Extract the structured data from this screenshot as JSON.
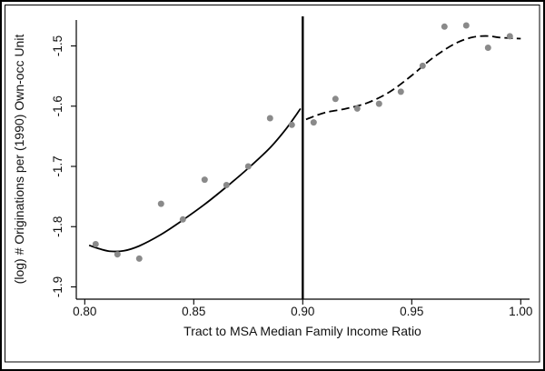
{
  "chart_data": {
    "type": "scatter",
    "title": "",
    "xlabel": "Tract to MSA Median Family Income Ratio",
    "ylabel": "(log) # Originations per (1990) Own-occ Unit",
    "xlim": [
      0.8,
      1.0
    ],
    "ylim": [
      -1.92,
      -1.457
    ],
    "grid": false,
    "legend": "none",
    "x_ticks": [
      0.8,
      0.85,
      0.9,
      0.95,
      1.0
    ],
    "x_tick_labels": [
      "0.80",
      "0.85",
      "0.90",
      "0.95",
      "1.00"
    ],
    "y_ticks": [
      -1.5,
      -1.6,
      -1.7,
      -1.8,
      -1.9
    ],
    "y_tick_labels": [
      "-1.5",
      "-1.6",
      "-1.7",
      "-1.8",
      "-1.9"
    ],
    "cutoff_x": 0.9,
    "point_color": "#8a8a8a",
    "line_color": "#000000",
    "points": [
      {
        "x": 0.805,
        "y": -1.829
      },
      {
        "x": 0.815,
        "y": -1.846
      },
      {
        "x": 0.825,
        "y": -1.853
      },
      {
        "x": 0.835,
        "y": -1.762
      },
      {
        "x": 0.845,
        "y": -1.788
      },
      {
        "x": 0.855,
        "y": -1.722
      },
      {
        "x": 0.865,
        "y": -1.731
      },
      {
        "x": 0.875,
        "y": -1.7
      },
      {
        "x": 0.885,
        "y": -1.62
      },
      {
        "x": 0.895,
        "y": -1.631
      },
      {
        "x": 0.905,
        "y": -1.627
      },
      {
        "x": 0.915,
        "y": -1.588
      },
      {
        "x": 0.925,
        "y": -1.604
      },
      {
        "x": 0.935,
        "y": -1.596
      },
      {
        "x": 0.945,
        "y": -1.576
      },
      {
        "x": 0.955,
        "y": -1.533
      },
      {
        "x": 0.965,
        "y": -1.468
      },
      {
        "x": 0.975,
        "y": -1.466
      },
      {
        "x": 0.985,
        "y": -1.503
      },
      {
        "x": 0.995,
        "y": -1.484
      }
    ],
    "fit_left": {
      "style": "solid",
      "points": [
        [
          0.802,
          -1.831
        ],
        [
          0.807,
          -1.837
        ],
        [
          0.812,
          -1.841
        ],
        [
          0.818,
          -1.84
        ],
        [
          0.825,
          -1.832
        ],
        [
          0.835,
          -1.813
        ],
        [
          0.845,
          -1.789
        ],
        [
          0.855,
          -1.763
        ],
        [
          0.865,
          -1.734
        ],
        [
          0.875,
          -1.703
        ],
        [
          0.885,
          -1.669
        ],
        [
          0.8925,
          -1.637
        ],
        [
          0.899,
          -1.604
        ]
      ]
    },
    "fit_right": {
      "style": "dashed",
      "points": [
        [
          0.9015,
          -1.622
        ],
        [
          0.91,
          -1.611
        ],
        [
          0.92,
          -1.604
        ],
        [
          0.93,
          -1.594
        ],
        [
          0.94,
          -1.576
        ],
        [
          0.95,
          -1.549
        ],
        [
          0.96,
          -1.519
        ],
        [
          0.97,
          -1.496
        ],
        [
          0.978,
          -1.4855
        ],
        [
          0.985,
          -1.4835
        ],
        [
          0.99,
          -1.486
        ],
        [
          1.0,
          -1.488
        ]
      ]
    }
  }
}
